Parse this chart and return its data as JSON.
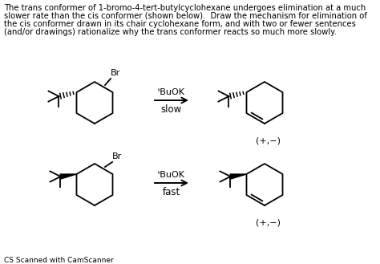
{
  "background_color": "#ffffff",
  "text_color": "#000000",
  "paragraph_lines": [
    "The trans conformer of 1-bromo-4-tert-butylcyclohexane undergoes elimination at a much",
    "slower rate than the cis conformer (shown below).  Draw the mechanism for elimination of",
    "the cis conformer drawn in its chair cyclohexane form, and with two or fewer sentences",
    "(and/or drawings) rationalize why the trans conformer reacts so much more slowly."
  ],
  "paragraph_fontsize": 7.2,
  "reaction1_label": "ᵗBuOK",
  "reaction1_rate": "slow",
  "reaction2_label": "ᵗBuOK",
  "reaction2_rate": "fast",
  "product1_label": "(+,−)",
  "product2_label": "(+,−)",
  "footer": "CS Scanned with CamScanner",
  "footer_fontsize": 6.5
}
